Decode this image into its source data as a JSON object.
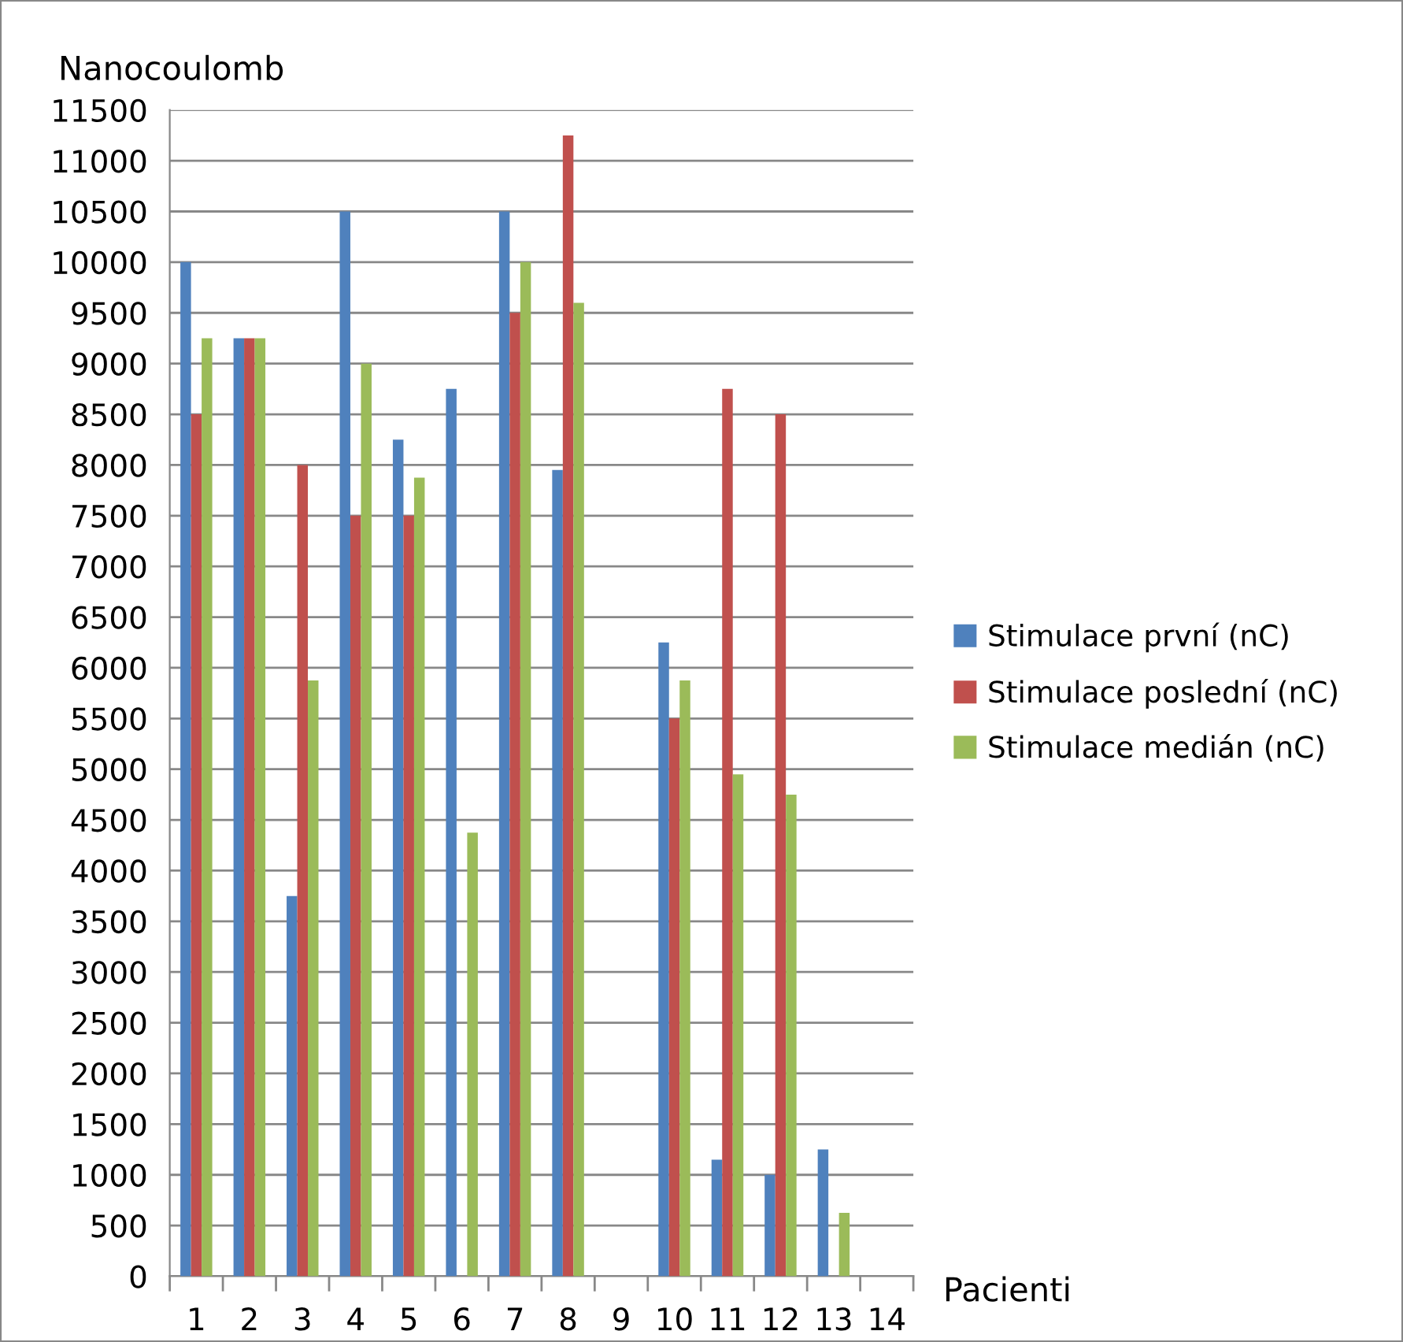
{
  "chart_data": {
    "type": "bar",
    "xlabel": "Pacienti",
    "ylabel": "Nanocoulomb",
    "categories": [
      "1",
      "2",
      "3",
      "4",
      "5",
      "6",
      "7",
      "8",
      "9",
      "10",
      "11",
      "12",
      "13",
      "14"
    ],
    "series": [
      {
        "name": "Stimulace první (nC)",
        "color": "#4f81bd",
        "values": [
          10000,
          9250,
          3750,
          10500,
          8250,
          8750,
          10500,
          7950,
          null,
          6250,
          1150,
          1000,
          1250,
          null
        ]
      },
      {
        "name": "Stimulace poslední (nC)",
        "color": "#c0504d",
        "values": [
          8500,
          9250,
          8000,
          7500,
          7500,
          null,
          9500,
          11250,
          null,
          5500,
          8750,
          8500,
          null,
          null
        ]
      },
      {
        "name": "Stimulace medián (nC)",
        "color": "#9bbb59",
        "values": [
          9250,
          9250,
          5875,
          9000,
          7875,
          4375,
          10000,
          9600,
          null,
          5875,
          4950,
          4750,
          625,
          null
        ]
      }
    ],
    "ylim": [
      0,
      11500
    ],
    "yticks": [
      0,
      500,
      1000,
      1500,
      2000,
      2500,
      3000,
      3500,
      4000,
      4500,
      5000,
      5500,
      6000,
      6500,
      7000,
      7500,
      8000,
      8500,
      9000,
      9500,
      10000,
      10500,
      11000,
      11500
    ],
    "grid": "y",
    "legend": "right"
  }
}
